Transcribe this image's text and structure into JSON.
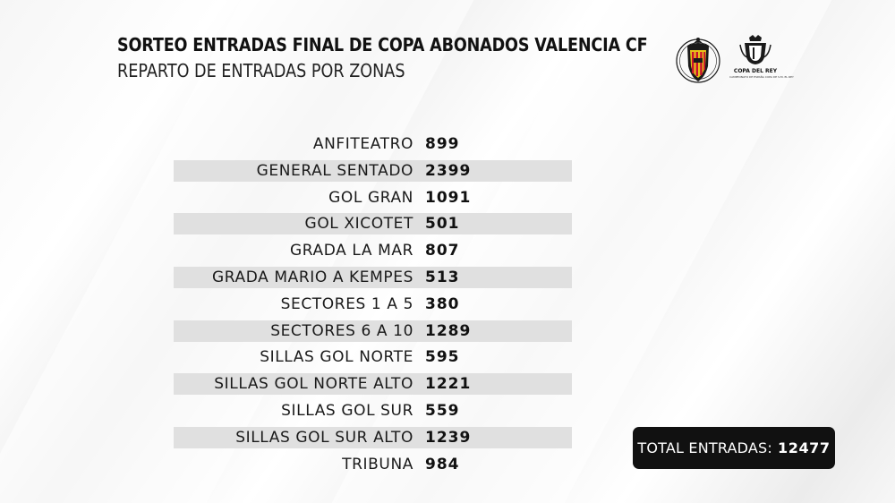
{
  "header": {
    "title": "SORTEO ENTRADAS FINAL DE COPA ABONADOS VALENCIA CF",
    "subtitle": "REPARTO DE ENTRADAS POR ZONAS"
  },
  "logos": {
    "club_crest": {
      "icon": "valencia-cf-crest-icon",
      "colors": {
        "outer": "#1a1a1a",
        "inner": "#e8c21a",
        "accent": "#c8102e"
      }
    },
    "competition": {
      "icon": "copa-del-rey-trophy-icon",
      "label": "COPA DEL REY",
      "sub_label": "CAMPEONATO DE ESPAÑA COPA DE S.M. EL REY"
    }
  },
  "zones": [
    {
      "name": "ANFITEATRO",
      "count": "899"
    },
    {
      "name": "GENERAL SENTADO",
      "count": "2399"
    },
    {
      "name": "GOL GRAN",
      "count": "1091"
    },
    {
      "name": "GOL XICOTET",
      "count": "501"
    },
    {
      "name": "GRADA LA MAR",
      "count": "807"
    },
    {
      "name": "GRADA MARIO A KEMPES",
      "count": "513"
    },
    {
      "name": "SECTORES 1 A 5",
      "count": "380"
    },
    {
      "name": "SECTORES 6 A 10",
      "count": "1289"
    },
    {
      "name": "SILLAS GOL NORTE",
      "count": "595"
    },
    {
      "name": "SILLAS GOL NORTE ALTO",
      "count": "1221"
    },
    {
      "name": "SILLAS GOL SUR",
      "count": "559"
    },
    {
      "name": "SILLAS GOL SUR ALTO",
      "count": "1239"
    },
    {
      "name": "TRIBUNA",
      "count": "984"
    }
  ],
  "total": {
    "label": "TOTAL ENTRADAS:",
    "value": "12477"
  },
  "colors": {
    "row_shade": "#e0e0e0",
    "total_box": "#111111",
    "text": "#111111"
  }
}
